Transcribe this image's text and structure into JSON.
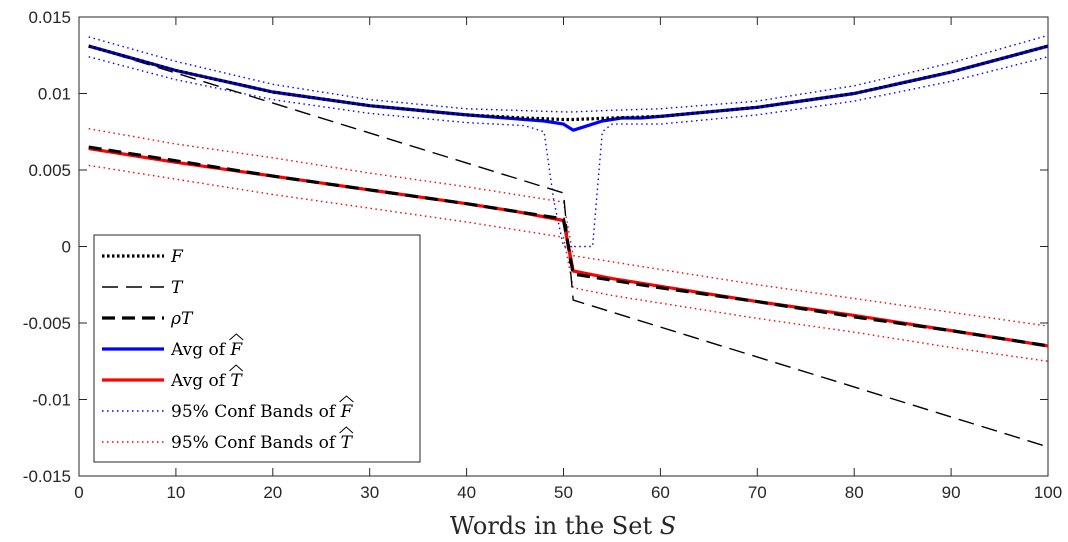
{
  "chart_data": {
    "type": "line",
    "xlabel": "Words in the Set S",
    "ylabel": "",
    "xlim": [
      0,
      100
    ],
    "ylim": [
      -0.015,
      0.015
    ],
    "grid": false,
    "legend_position": "bottom-left",
    "x_ticks": [
      {
        "value": 0,
        "label": "0"
      },
      {
        "value": 10,
        "label": "10"
      },
      {
        "value": 20,
        "label": "20"
      },
      {
        "value": 30,
        "label": "30"
      },
      {
        "value": 40,
        "label": "40"
      },
      {
        "value": 50,
        "label": "50"
      },
      {
        "value": 60,
        "label": "60"
      },
      {
        "value": 70,
        "label": "70"
      },
      {
        "value": 80,
        "label": "80"
      },
      {
        "value": 90,
        "label": "90"
      },
      {
        "value": 100,
        "label": "100"
      }
    ],
    "y_ticks": [
      {
        "value": 0.015,
        "label": "0.015"
      },
      {
        "value": 0.01,
        "label": "0.01"
      },
      {
        "value": 0.005,
        "label": "0.005"
      },
      {
        "value": 0,
        "label": "0"
      },
      {
        "value": -0.005,
        "label": "-0.005"
      },
      {
        "value": -0.01,
        "label": "-0.01"
      },
      {
        "value": -0.015,
        "label": "-0.015"
      }
    ],
    "series": [
      {
        "name": "F",
        "color": "#000000",
        "style": "dotted-thick",
        "x": [
          1,
          10,
          20,
          30,
          40,
          46,
          50,
          51,
          55,
          60,
          70,
          80,
          90,
          100
        ],
        "y": [
          0.0131,
          0.0115,
          0.0101,
          0.0092,
          0.0086,
          0.0084,
          0.0083,
          0.0083,
          0.0084,
          0.0085,
          0.0091,
          0.01,
          0.0114,
          0.0131
        ]
      },
      {
        "name": "T",
        "color": "#000000",
        "style": "dashed-thin",
        "x": [
          1,
          50,
          51,
          100
        ],
        "y": [
          0.0131,
          0.0035,
          -0.0035,
          -0.0131
        ]
      },
      {
        "name": "ρT",
        "color": "#000000",
        "style": "dashed-thick",
        "x": [
          1,
          10,
          20,
          30,
          40,
          45,
          50,
          51,
          55,
          60,
          70,
          80,
          90,
          100
        ],
        "y": [
          0.0065,
          0.0056,
          0.0046,
          0.0037,
          0.0028,
          0.0023,
          0.0018,
          -0.0018,
          -0.0022,
          -0.0027,
          -0.0036,
          -0.0046,
          -0.0055,
          -0.0065
        ]
      },
      {
        "name": "Avg of F̂",
        "color": "#0000ff",
        "style": "solid",
        "x": [
          1,
          10,
          20,
          30,
          40,
          46,
          48,
          50,
          51,
          52,
          54,
          56,
          58,
          60,
          70,
          80,
          90,
          100
        ],
        "y": [
          0.0131,
          0.0115,
          0.0101,
          0.0092,
          0.0086,
          0.0083,
          0.0082,
          0.008,
          0.0076,
          0.0078,
          0.0082,
          0.0084,
          0.0084,
          0.0085,
          0.0091,
          0.01,
          0.0114,
          0.0131
        ]
      },
      {
        "name": "Avg of T̂",
        "color": "#ff0000",
        "style": "solid",
        "x": [
          1,
          10,
          20,
          30,
          40,
          45,
          50,
          51,
          55,
          60,
          70,
          80,
          90,
          100
        ],
        "y": [
          0.0064,
          0.0055,
          0.0046,
          0.0037,
          0.0028,
          0.0023,
          0.0017,
          -0.0016,
          -0.0021,
          -0.0026,
          -0.0036,
          -0.0045,
          -0.0055,
          -0.0065
        ]
      },
      {
        "name": "95% Conf Bands of F̂",
        "color": "#0000ff",
        "style": "dotted-thin",
        "upper": {
          "x": [
            1,
            10,
            20,
            30,
            40,
            50,
            51,
            55,
            60,
            70,
            80,
            90,
            100
          ],
          "y": [
            0.0137,
            0.0121,
            0.0106,
            0.0096,
            0.009,
            0.0088,
            0.0088,
            0.0089,
            0.009,
            0.0095,
            0.0105,
            0.012,
            0.0138
          ]
        },
        "lower": {
          "x": [
            1,
            10,
            20,
            30,
            40,
            46,
            48,
            49,
            50,
            51,
            52,
            53,
            54,
            55,
            60,
            70,
            80,
            90,
            100
          ],
          "y": [
            0.0124,
            0.0109,
            0.0096,
            0.0087,
            0.0081,
            0.0079,
            0.0075,
            0.003,
            0.0,
            0.0,
            0.0,
            0.0,
            0.0075,
            0.008,
            0.008,
            0.0086,
            0.0095,
            0.0108,
            0.0124
          ]
        }
      },
      {
        "name": "95% Conf Bands of T̂",
        "color": "#ff0000",
        "style": "dotted-thin",
        "upper": {
          "x": [
            1,
            10,
            20,
            30,
            40,
            50,
            51,
            55,
            60,
            70,
            80,
            90,
            100
          ],
          "y": [
            0.0077,
            0.0067,
            0.0058,
            0.0048,
            0.0039,
            0.0029,
            -0.0006,
            -0.001,
            -0.0015,
            -0.0025,
            -0.0034,
            -0.0043,
            -0.0052
          ]
        },
        "lower": {
          "x": [
            1,
            10,
            20,
            30,
            40,
            50,
            51,
            55,
            60,
            70,
            80,
            90,
            100
          ],
          "y": [
            0.0053,
            0.0044,
            0.0034,
            0.0025,
            0.0016,
            0.0006,
            -0.0027,
            -0.0032,
            -0.0037,
            -0.0047,
            -0.0056,
            -0.0066,
            -0.0075
          ]
        }
      }
    ],
    "legend": [
      {
        "text": "F",
        "hat": false,
        "series": 0
      },
      {
        "text": "T",
        "hat": false,
        "series": 1
      },
      {
        "text": "ρT",
        "hat": false,
        "series": 2
      },
      {
        "text": "Avg of F",
        "hat": true,
        "series": 3
      },
      {
        "text": "Avg of T",
        "hat": true,
        "series": 4
      },
      {
        "text": "95% Conf Bands of F",
        "hat": true,
        "series": 5
      },
      {
        "text": "95% Conf Bands of T",
        "hat": true,
        "series": 6
      }
    ]
  }
}
